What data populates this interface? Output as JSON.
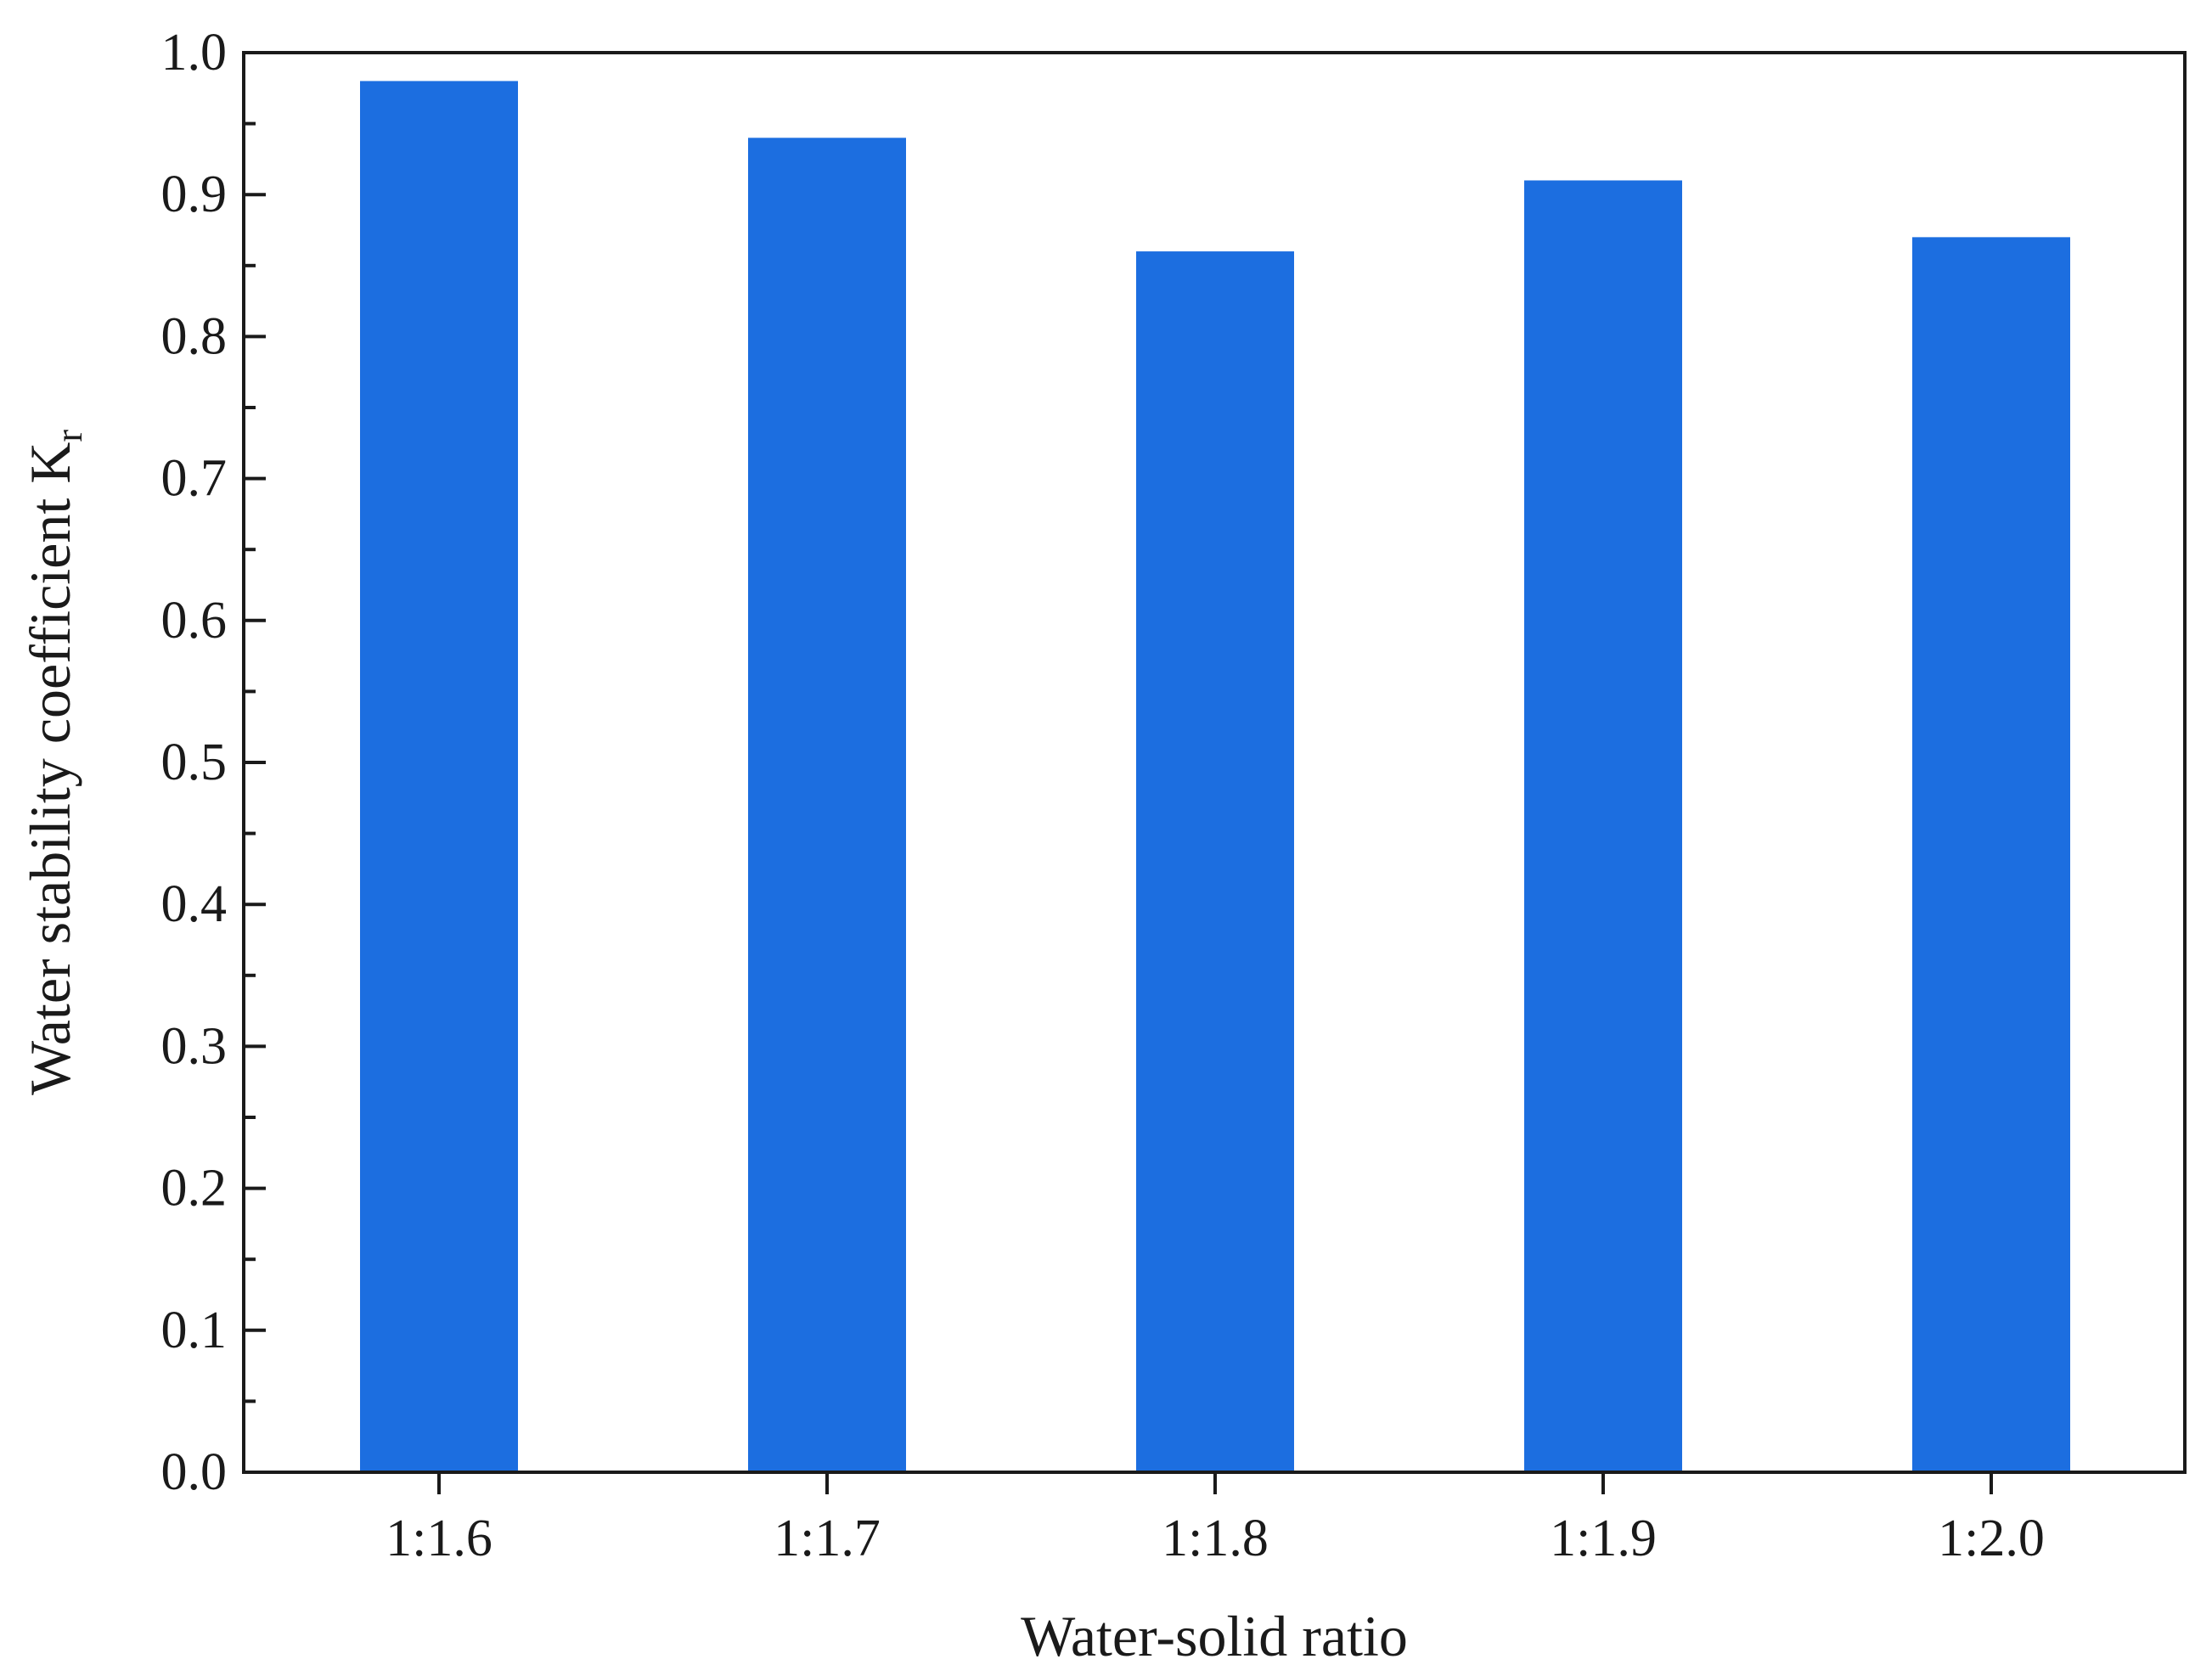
{
  "chart_data": {
    "type": "bar",
    "title": "",
    "categories": [
      "1:1.6",
      "1:1.7",
      "1:1.8",
      "1:1.9",
      "1:2.0"
    ],
    "values": [
      0.98,
      0.94,
      0.86,
      0.91,
      0.87
    ],
    "xlabel": "Water-solid ratio",
    "ylabel": {
      "text": "Water stability coefficient K",
      "subscript": "r"
    },
    "ylim": [
      0.0,
      1.0
    ],
    "yticks": [
      "0.0",
      "0.1",
      "0.2",
      "0.3",
      "0.4",
      "0.5",
      "0.6",
      "0.7",
      "0.8",
      "0.9",
      "1.0"
    ],
    "grid": false,
    "bar_color": "#1c6ee0",
    "legend": "none"
  }
}
